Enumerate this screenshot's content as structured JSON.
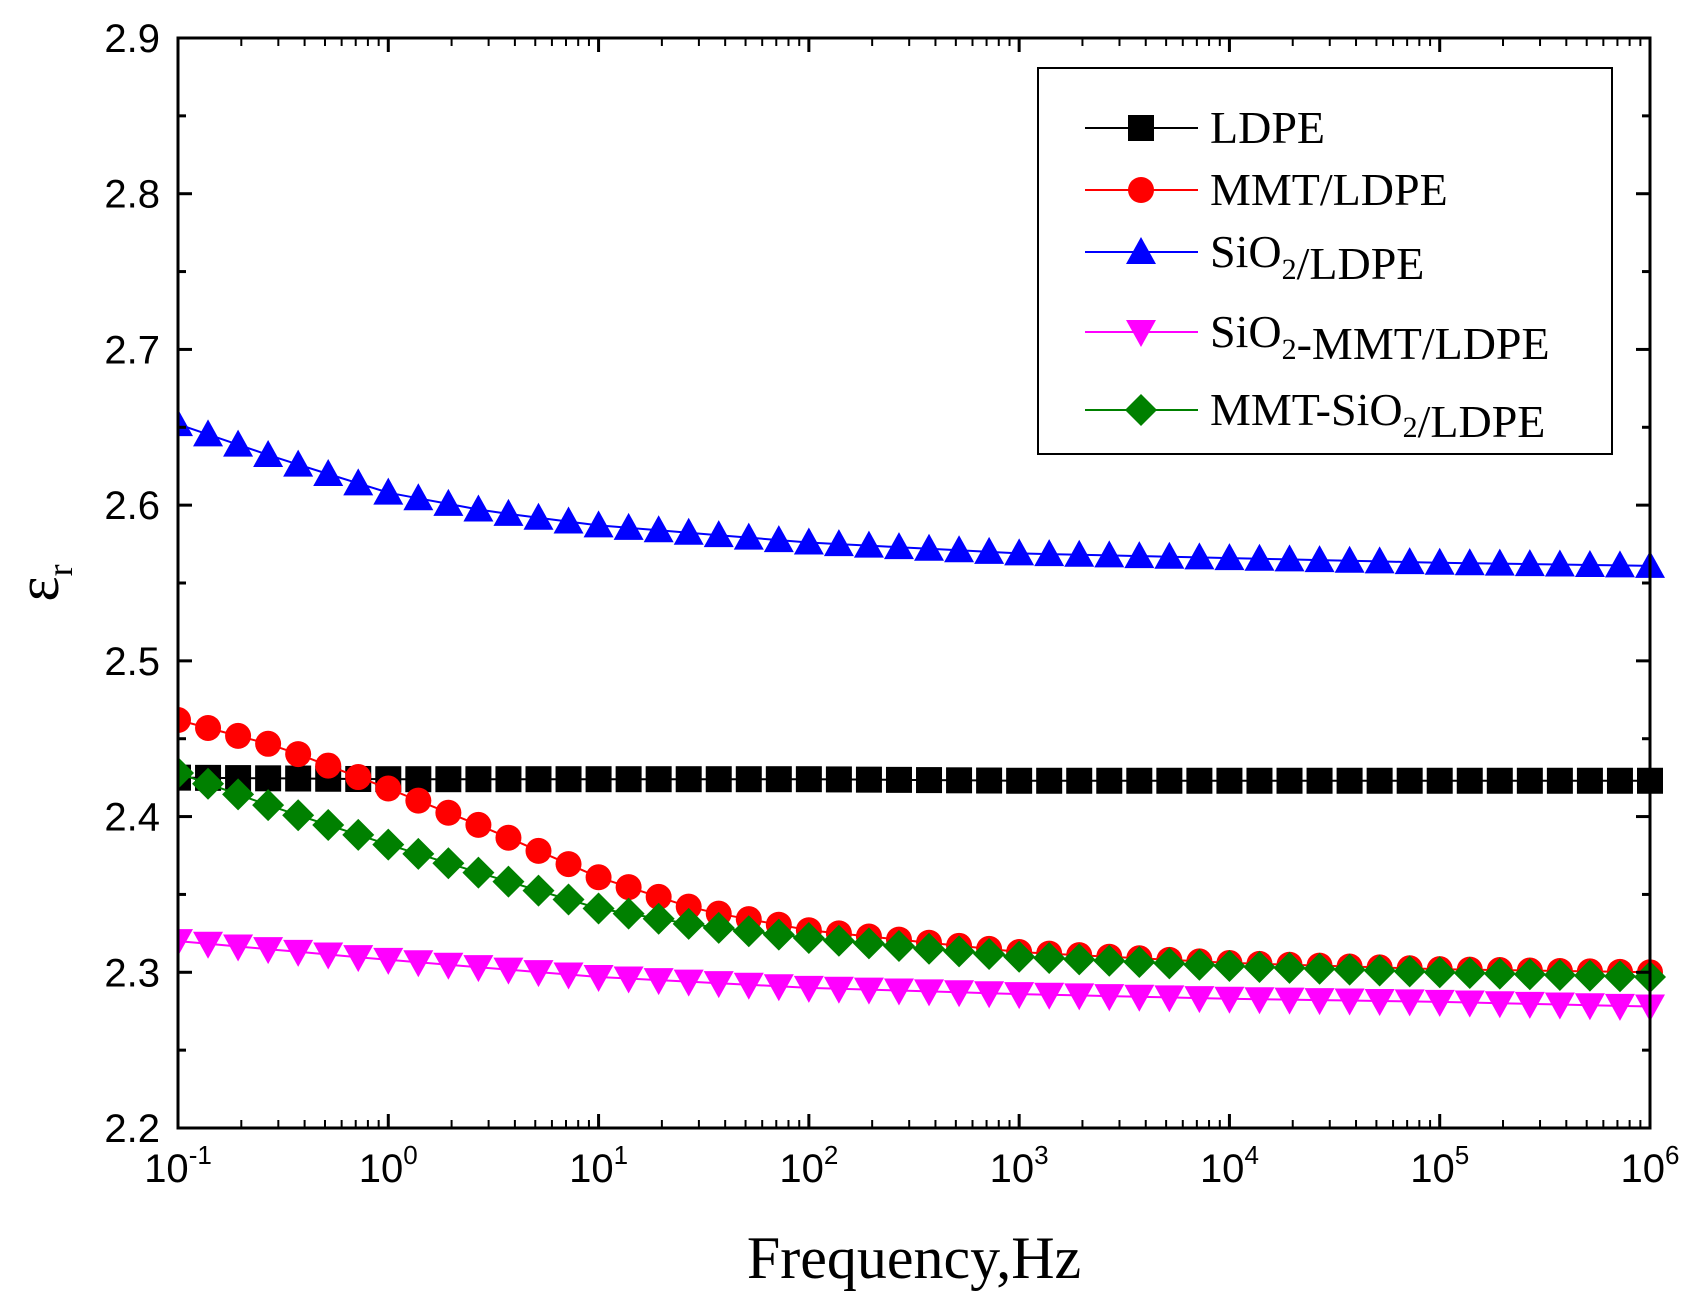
{
  "chart_data": {
    "type": "line",
    "title": "",
    "xlabel": "Frequency,Hz",
    "ylabel": {
      "base": "ε",
      "sub": "r"
    },
    "xscale": "log",
    "xlim": [
      0.1,
      1000000
    ],
    "ylim": [
      2.2,
      2.9
    ],
    "y_ticks": [
      "2.2",
      "2.3",
      "2.4",
      "2.5",
      "2.6",
      "2.7",
      "2.8",
      "2.9"
    ],
    "x_ticks": [
      {
        "base": "10",
        "exp": "-1"
      },
      {
        "base": "10",
        "exp": "0"
      },
      {
        "base": "10",
        "exp": "1"
      },
      {
        "base": "10",
        "exp": "2"
      },
      {
        "base": "10",
        "exp": "3"
      },
      {
        "base": "10",
        "exp": "4"
      },
      {
        "base": "10",
        "exp": "5"
      },
      {
        "base": "10",
        "exp": "6"
      }
    ],
    "grid": false,
    "legend_position": "top-right",
    "points_per_decade": 7,
    "series": [
      {
        "name": "LDPE",
        "label_parts": [
          {
            "t": "LDPE"
          }
        ],
        "color": "#000000",
        "marker": "square",
        "anchors": [
          [
            0.1,
            2.425
          ],
          [
            1,
            2.424
          ],
          [
            10,
            2.424
          ],
          [
            100,
            2.424
          ],
          [
            1000,
            2.423
          ],
          [
            10000,
            2.423
          ],
          [
            100000,
            2.423
          ],
          [
            1000000,
            2.423
          ]
        ]
      },
      {
        "name": "MMT/LDPE",
        "label_parts": [
          {
            "t": "MMT/LDPE"
          }
        ],
        "color": "#ff0000",
        "marker": "circle",
        "anchors": [
          [
            0.1,
            2.462
          ],
          [
            0.3,
            2.445
          ],
          [
            1,
            2.418
          ],
          [
            3,
            2.392
          ],
          [
            10,
            2.361
          ],
          [
            30,
            2.34
          ],
          [
            100,
            2.327
          ],
          [
            1000,
            2.313
          ],
          [
            10000,
            2.306
          ],
          [
            100000,
            2.302
          ],
          [
            1000000,
            2.3
          ]
        ]
      },
      {
        "name": "SiO2/LDPE",
        "label_parts": [
          {
            "t": "SiO"
          },
          {
            "t": "2",
            "sub": true
          },
          {
            "t": "/LDPE"
          }
        ],
        "color": "#0000ff",
        "marker": "triangle-up",
        "anchors": [
          [
            0.1,
            2.652
          ],
          [
            0.3,
            2.63
          ],
          [
            1,
            2.608
          ],
          [
            3,
            2.596
          ],
          [
            10,
            2.587
          ],
          [
            100,
            2.576
          ],
          [
            1000,
            2.569
          ],
          [
            10000,
            2.566
          ],
          [
            100000,
            2.563
          ],
          [
            1000000,
            2.561
          ]
        ]
      },
      {
        "name": "SiO2-MMT/LDPE",
        "label_parts": [
          {
            "t": "SiO"
          },
          {
            "t": "2",
            "sub": true
          },
          {
            "t": "-MMT/LDPE"
          }
        ],
        "color": "#ff00ff",
        "marker": "triangle-down",
        "anchors": [
          [
            0.1,
            2.32
          ],
          [
            1,
            2.308
          ],
          [
            10,
            2.297
          ],
          [
            100,
            2.29
          ],
          [
            1000,
            2.286
          ],
          [
            10000,
            2.283
          ],
          [
            100000,
            2.281
          ],
          [
            1000000,
            2.278
          ]
        ]
      },
      {
        "name": "MMT-SiO2/LDPE",
        "label_parts": [
          {
            "t": "MMT-SiO"
          },
          {
            "t": "2",
            "sub": true
          },
          {
            "t": "/LDPE"
          }
        ],
        "color": "#008000",
        "marker": "diamond",
        "anchors": [
          [
            0.1,
            2.428
          ],
          [
            0.3,
            2.405
          ],
          [
            1,
            2.382
          ],
          [
            3,
            2.362
          ],
          [
            10,
            2.341
          ],
          [
            30,
            2.33
          ],
          [
            100,
            2.322
          ],
          [
            1000,
            2.31
          ],
          [
            10000,
            2.304
          ],
          [
            100000,
            2.3
          ],
          [
            1000000,
            2.297
          ]
        ]
      }
    ]
  }
}
